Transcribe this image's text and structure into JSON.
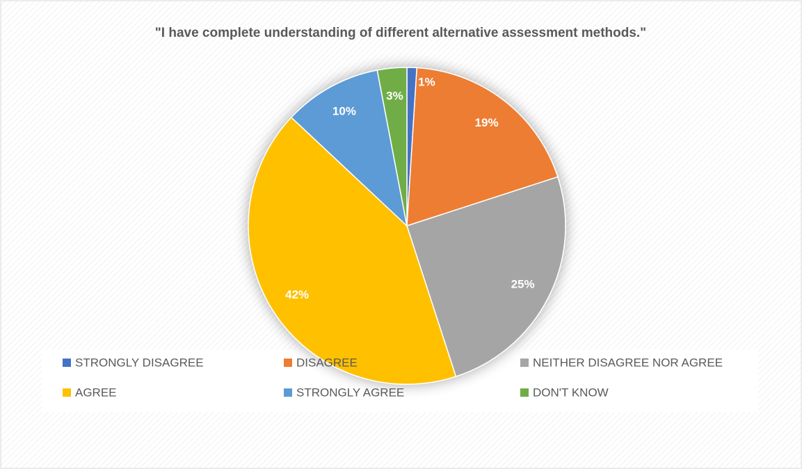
{
  "chart_data": {
    "type": "pie",
    "title": "\"I have complete understanding of different alternative assessment methods.\"",
    "categories": [
      "STRONGLY DISAGREE",
      "DISAGREE",
      "NEITHER DISAGREE NOR AGREE",
      "AGREE",
      "STRONGLY AGREE",
      "DON'T KNOW"
    ],
    "values": [
      1,
      19,
      25,
      42,
      10,
      3
    ],
    "value_labels": [
      "1%",
      "19%",
      "25%",
      "42%",
      "10%",
      "3%"
    ],
    "colors": [
      "#4472c4",
      "#ed7d31",
      "#a5a5a5",
      "#ffc000",
      "#5b9bd5",
      "#70ad47"
    ],
    "legend": "bottom"
  }
}
